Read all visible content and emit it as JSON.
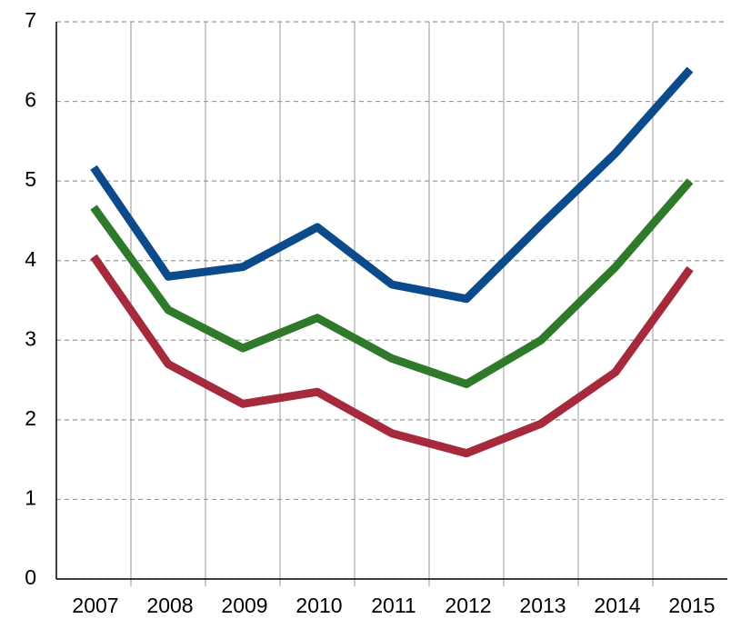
{
  "chart_data": {
    "type": "line",
    "categories": [
      "2007",
      "2008",
      "2009",
      "2010",
      "2011",
      "2012",
      "2013",
      "2014",
      "2015"
    ],
    "series": [
      {
        "color": "#0b4a8b",
        "values": [
          5.17,
          3.8,
          3.92,
          4.42,
          3.7,
          3.52,
          4.45,
          5.35,
          6.4
        ]
      },
      {
        "color": "#2f7a2a",
        "values": [
          4.67,
          3.38,
          2.9,
          3.28,
          2.77,
          2.45,
          3.0,
          3.92,
          5.0
        ]
      },
      {
        "color": "#a52a3c",
        "values": [
          4.05,
          2.7,
          2.2,
          2.35,
          1.83,
          1.58,
          1.95,
          2.6,
          3.9
        ]
      }
    ],
    "ylim": [
      0,
      7
    ],
    "yticks": [
      0,
      1,
      2,
      3,
      4,
      5,
      6,
      7
    ],
    "grid": true
  }
}
